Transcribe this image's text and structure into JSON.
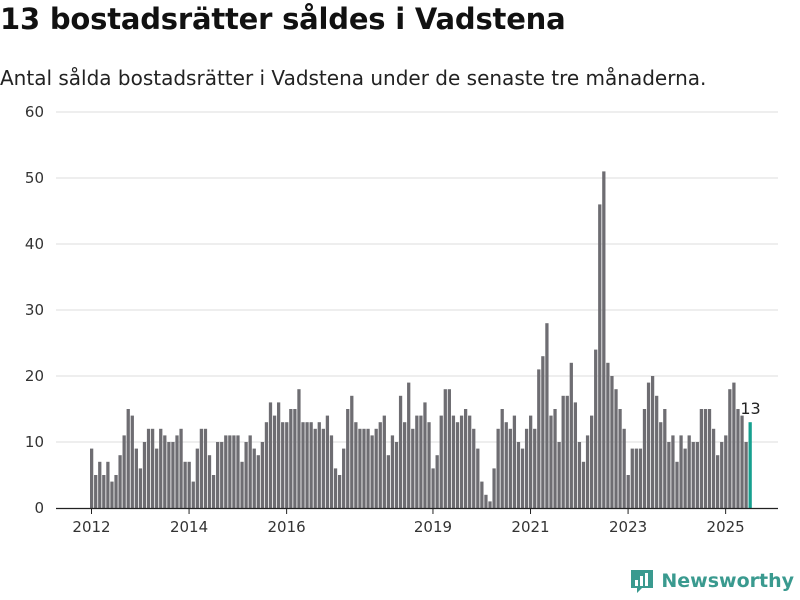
{
  "header": {
    "title": "13 bostadsrätter såldes i Vadstena",
    "subtitle": "Antal sålda bostadsrätter i Vadstena under de senaste tre månaderna."
  },
  "brand": {
    "name": "Newsworthy",
    "icon": "bar-chart-logo-icon",
    "color": "#3a9a8f"
  },
  "chart_data": {
    "type": "bar",
    "title": "13 bostadsrätter såldes i Vadstena",
    "subtitle": "Antal sålda bostadsrätter i Vadstena under de senaste tre månaderna.",
    "xlabel": "",
    "ylabel": "",
    "ylim": [
      0,
      60
    ],
    "yticks": [
      0,
      10,
      20,
      30,
      40,
      50,
      60
    ],
    "xticks": [
      "2012",
      "2014",
      "2016",
      "2019",
      "2021",
      "2023",
      "2025"
    ],
    "x_start": "2012-01",
    "x_end": "2025-06",
    "grid": true,
    "bar_color": "#6e6d72",
    "highlight_color": "#16a08f",
    "highlight_label": "13",
    "highlight_index": 162,
    "values": [
      9,
      5,
      7,
      5,
      7,
      4,
      5,
      8,
      11,
      15,
      14,
      9,
      6,
      10,
      12,
      12,
      9,
      12,
      11,
      10,
      10,
      11,
      12,
      7,
      7,
      4,
      9,
      12,
      12,
      8,
      5,
      10,
      10,
      11,
      11,
      11,
      11,
      7,
      10,
      11,
      9,
      8,
      10,
      13,
      16,
      14,
      16,
      13,
      13,
      15,
      15,
      18,
      13,
      13,
      13,
      12,
      13,
      12,
      14,
      11,
      6,
      5,
      9,
      15,
      17,
      13,
      12,
      12,
      12,
      11,
      12,
      13,
      14,
      8,
      11,
      10,
      17,
      13,
      19,
      12,
      14,
      14,
      16,
      13,
      6,
      8,
      14,
      18,
      18,
      14,
      13,
      14,
      15,
      14,
      12,
      9,
      4,
      2,
      1,
      6,
      12,
      15,
      13,
      12,
      14,
      10,
      9,
      12,
      14,
      12,
      21,
      23,
      28,
      14,
      15,
      10,
      17,
      17,
      22,
      16,
      10,
      7,
      11,
      14,
      24,
      46,
      51,
      22,
      20,
      18,
      15,
      12,
      5,
      9,
      9,
      9,
      15,
      19,
      20,
      17,
      13,
      15,
      10,
      11,
      7,
      11,
      9,
      11,
      10,
      10,
      15,
      15,
      15,
      12,
      8,
      10,
      11,
      18,
      19,
      15,
      14,
      10,
      13
    ]
  }
}
